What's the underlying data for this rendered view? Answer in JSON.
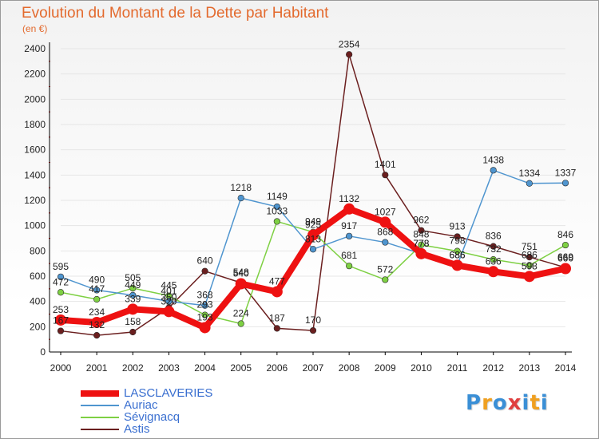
{
  "title": "Evolution du Montant de la Dette par Habitant",
  "unit": "(en €)",
  "logo": {
    "text": "Proxiti",
    "colors": [
      "#3a8fd6",
      "#f0a020",
      "#3a8fd6",
      "#e04040",
      "#3a8fd6",
      "#f0a020",
      "#3a8fd6"
    ]
  },
  "colors": {
    "title": "#e36a2e",
    "axis": "#000000",
    "grid": "#e6e6e6",
    "tick_red": "#d01010"
  },
  "chart_data": {
    "type": "line",
    "title": "Evolution du Montant de la Dette par Habitant",
    "ylabel": "(en €)",
    "xlabel": "",
    "x": [
      "2000",
      "2001",
      "2002",
      "2003",
      "2004",
      "2005",
      "2006",
      "2007",
      "2008",
      "2009",
      "2010",
      "2011",
      "2012",
      "2013",
      "2014"
    ],
    "ylim": [
      0,
      2400
    ],
    "yticks": [
      0,
      200,
      400,
      600,
      800,
      1000,
      1200,
      1400,
      1600,
      1800,
      2000,
      2200,
      2400
    ],
    "grid": true,
    "legend_position": "bottom-left",
    "series": [
      {
        "name": "LASCLAVERIES",
        "color": "#ee1111",
        "values": [
          253,
          234,
          339,
          320,
          193,
          540,
          477,
          925,
          1132,
          1027,
          778,
          686,
          636,
          598,
          660
        ]
      },
      {
        "name": "Auriac",
        "color": "#4f95cf",
        "values": [
          595,
          490,
          449,
          401,
          368,
          1218,
          1149,
          813,
          917,
          868,
          778,
          686,
          1438,
          1334,
          1337
        ]
      },
      {
        "name": "Sévignacq",
        "color": "#7ed043",
        "values": [
          472,
          417,
          505,
          445,
          293,
          224,
          1033,
          949,
          681,
          572,
          848,
          798,
          732,
          686,
          846
        ]
      },
      {
        "name": "Astis",
        "color": "#6b1f1f",
        "values": [
          167,
          132,
          158,
          350,
          640,
          548,
          187,
          170,
          2354,
          1401,
          962,
          913,
          836,
          751,
          669
        ]
      }
    ],
    "point_labels": [
      {
        "series": 0,
        "labels": [
          "253",
          "234",
          "339",
          "320",
          "193",
          "540",
          "477",
          "925",
          "1132",
          "1027",
          "778",
          "686",
          "636",
          "598",
          "660"
        ]
      },
      {
        "series": 1,
        "labels": [
          "595",
          "490",
          "449",
          "401",
          "368",
          "1218",
          "1149",
          "813",
          "917",
          "868",
          "778",
          "686",
          "1438",
          "1334",
          "1337"
        ]
      },
      {
        "series": 2,
        "labels": [
          "472",
          "417",
          "505",
          "445",
          "293",
          "224",
          "1033",
          "949",
          "681",
          "572",
          "848",
          "798",
          "732",
          "686",
          "846"
        ]
      },
      {
        "series": 3,
        "labels": [
          "167",
          "132",
          "158",
          "350",
          "640",
          "548",
          "187",
          "170",
          "2354",
          "1401",
          "962",
          "913",
          "836",
          "751",
          "669"
        ]
      }
    ]
  }
}
